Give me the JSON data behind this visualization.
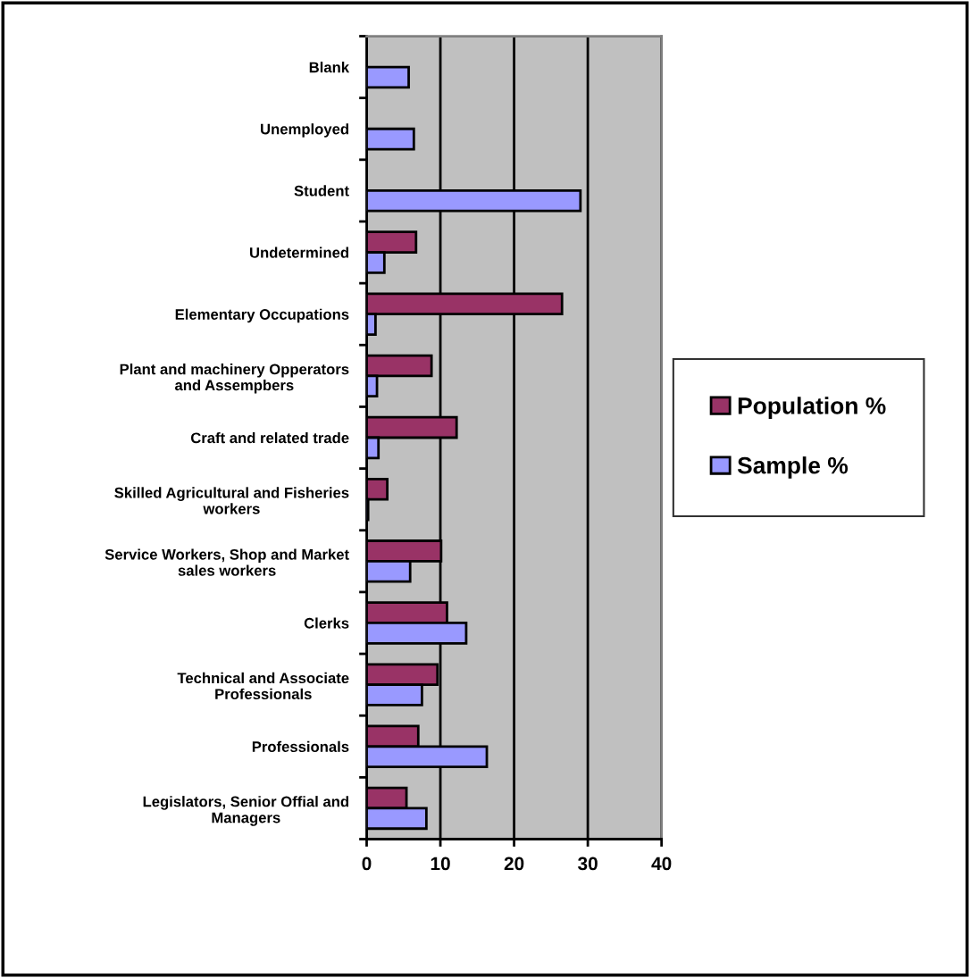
{
  "chart_data": {
    "type": "bar",
    "orientation": "horizontal",
    "categories": [
      "Blank",
      "Unemployed",
      "Student",
      "Undetermined",
      "Elementary Occupations",
      "Plant and machinery Opperators\nand Assempbers",
      "Craft and related trade",
      "Skilled Agricultural and Fisheries\nworkers",
      "Service Workers, Shop and Market\nsales workers",
      "Clerks",
      "Technical and Associate\nProfessionals",
      "Professionals",
      "Legislators, Senior Offial and\nManagers"
    ],
    "series": [
      {
        "name": "Population %",
        "color": "#993366",
        "values": [
          null,
          null,
          null,
          6.7,
          26.5,
          8.8,
          12.2,
          2.8,
          10.1,
          10.9,
          9.6,
          7.0,
          5.4
        ]
      },
      {
        "name": "Sample %",
        "color": "#9999ff",
        "values": [
          5.7,
          6.4,
          29.0,
          2.4,
          1.2,
          1.4,
          1.6,
          0.2,
          5.9,
          13.5,
          7.5,
          16.3,
          8.1
        ]
      }
    ],
    "xlim": [
      0,
      40
    ],
    "xticks": [
      0,
      10,
      20,
      30,
      40
    ],
    "grid": "x",
    "legend": "right"
  }
}
